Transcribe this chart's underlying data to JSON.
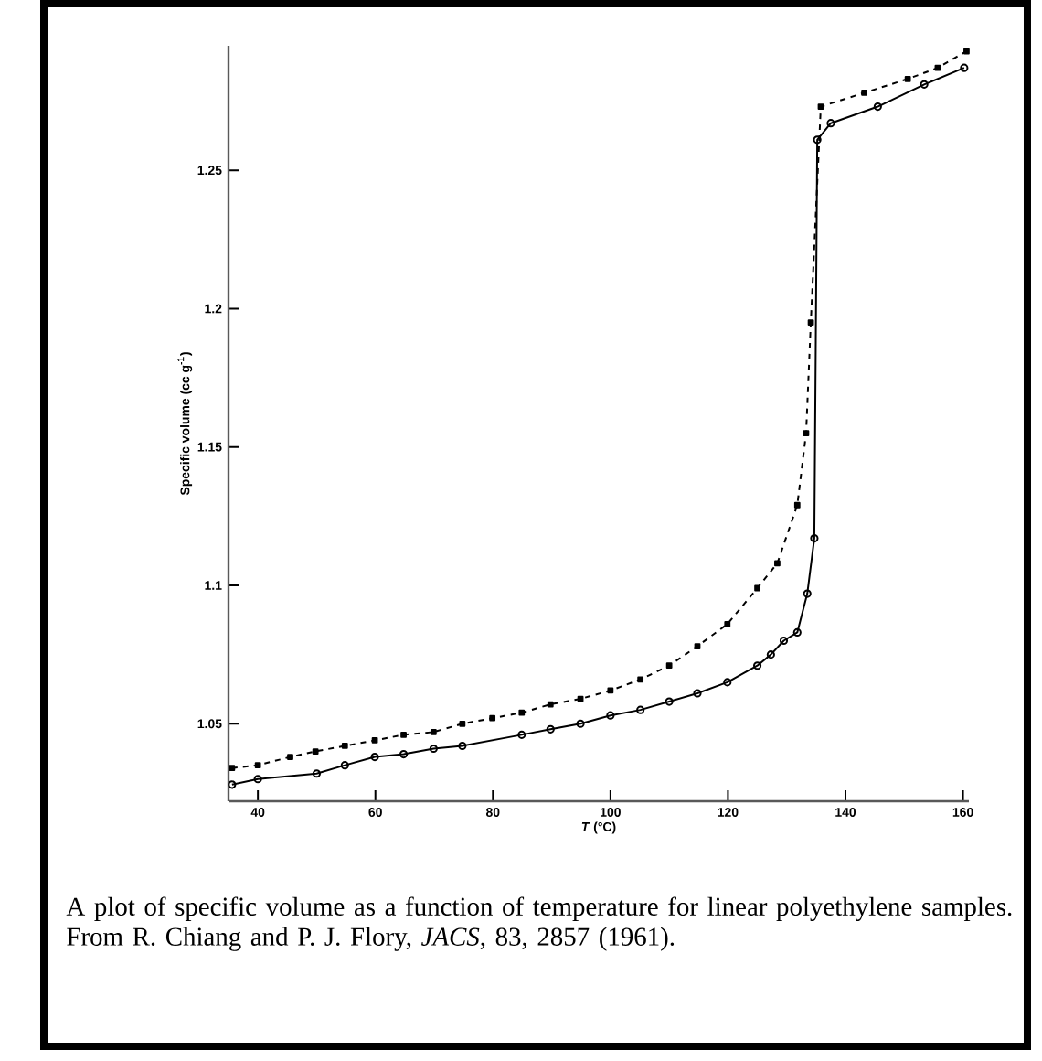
{
  "chart_data": {
    "type": "line",
    "xlabel": "*T* (°C)",
    "ylabel": "Specific volume (cc g$^{-1}$)",
    "xlim": [
      35,
      161
    ],
    "ylim": [
      1.022,
      1.295
    ],
    "xticks": [
      40,
      60,
      80,
      100,
      120,
      140,
      160
    ],
    "yticks": [
      1.05,
      1.1,
      1.15,
      1.2,
      1.25
    ],
    "series": [
      {
        "color": "#000000",
        "marker": "square",
        "line_style": "dashed",
        "x": [
          35.6,
          40,
          45.5,
          49.8,
          54.8,
          59.9,
          64.8,
          69.9,
          74.8,
          79.9,
          84.9,
          89.8,
          94.9,
          100,
          105.1,
          110,
          114.8,
          119.9,
          125,
          128.4,
          131.8,
          133.3,
          134.1,
          135.8,
          143.2,
          150.6,
          155.7,
          160.6
        ],
        "values": [
          1.034,
          1.035,
          1.038,
          1.04,
          1.042,
          1.044,
          1.046,
          1.047,
          1.05,
          1.052,
          1.054,
          1.057,
          1.059,
          1.062,
          1.066,
          1.071,
          1.078,
          1.086,
          1.099,
          1.108,
          1.129,
          1.155,
          1.195,
          1.273,
          1.278,
          1.283,
          1.287,
          1.293
        ]
      },
      {
        "color": "#000000",
        "marker": "circle",
        "line_style": "solid",
        "x": [
          35.6,
          40,
          50,
          54.8,
          59.9,
          64.8,
          69.9,
          74.8,
          84.9,
          89.8,
          94.9,
          100,
          105.1,
          110,
          114.8,
          119.9,
          125,
          127.3,
          129.5,
          131.8,
          133.5,
          134.7,
          135.2,
          137.5,
          145.5,
          153.4,
          160.2
        ],
        "values": [
          1.028,
          1.03,
          1.032,
          1.035,
          1.038,
          1.039,
          1.041,
          1.042,
          1.046,
          1.048,
          1.05,
          1.053,
          1.055,
          1.058,
          1.061,
          1.065,
          1.071,
          1.075,
          1.08,
          1.083,
          1.097,
          1.117,
          1.261,
          1.267,
          1.273,
          1.281,
          1.287
        ]
      }
    ],
    "annotations": [
      "A plot of specific volume as a function of temperature for linear polyethylene samples.  From R. Chiang and P. J. Flory, *JACS*, 83, 2857 (1961)."
    ]
  }
}
